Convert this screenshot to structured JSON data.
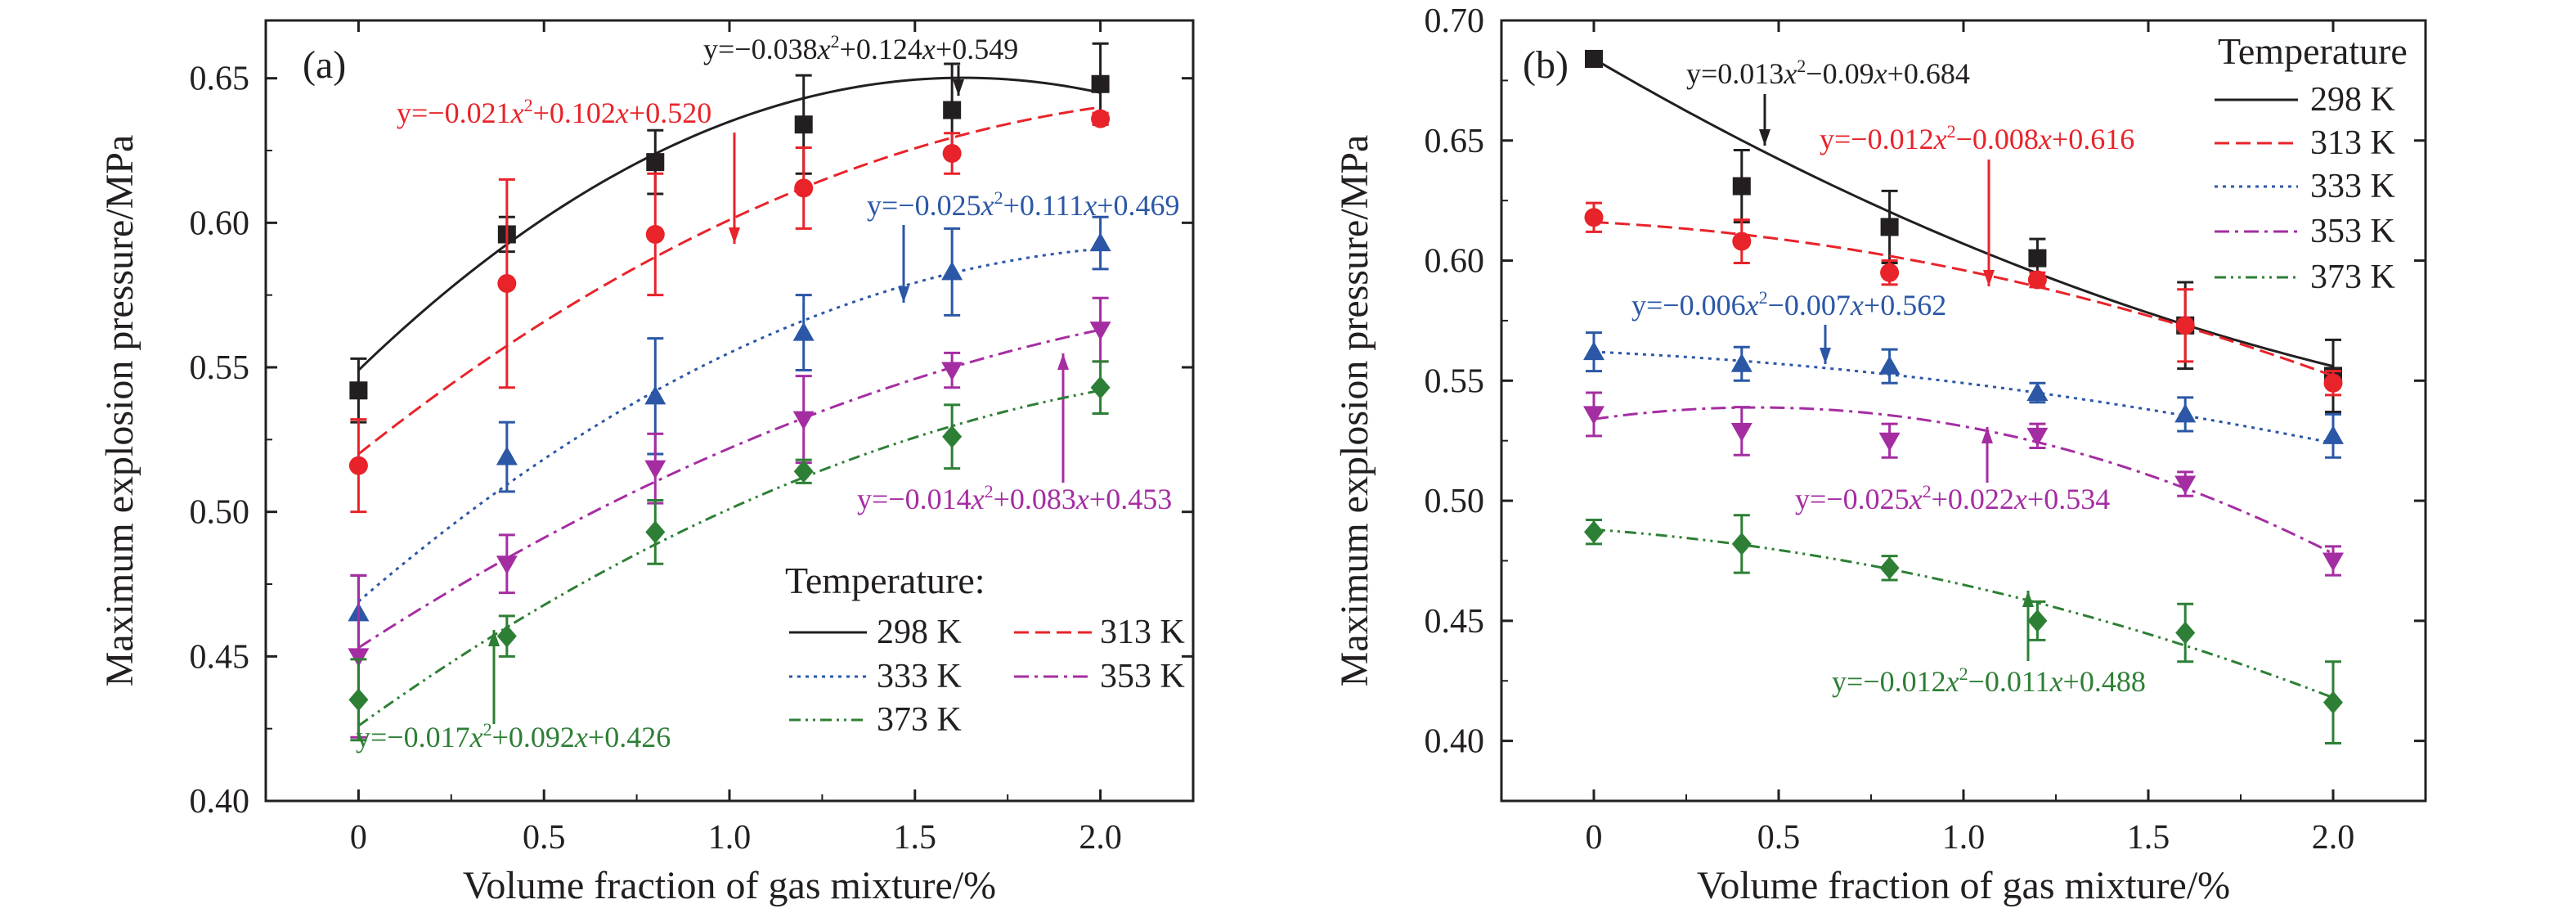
{
  "chart_data": [
    {
      "type": "scatter",
      "panel_label": "(a)",
      "xlabel": "Volume fraction of gas mixture/%",
      "ylabel": "Maximum explosion pressure/MPa",
      "xlim": [
        -0.25,
        2.25
      ],
      "ylim": [
        0.4,
        0.67
      ],
      "xticks": [
        "0",
        "0.5",
        "1.0",
        "1.5",
        "2.0"
      ],
      "yticks": [
        "0.40",
        "0.45",
        "0.50",
        "0.55",
        "0.60",
        "0.65"
      ],
      "grid": false,
      "legend_title": "Temperature:",
      "legend_position": "bottom-right",
      "x": [
        0,
        0.4,
        0.8,
        1.2,
        1.6,
        2.0
      ],
      "series": [
        {
          "name": "298 K",
          "color": "#231f20",
          "marker": "square",
          "line": "solid",
          "values": [
            0.542,
            0.596,
            0.621,
            0.634,
            0.639,
            0.648
          ],
          "errors": [
            0.011,
            0.006,
            0.011,
            0.017,
            0.016,
            0.014
          ],
          "fit": [
            -0.038,
            0.124,
            0.549
          ],
          "equation": {
            "pre": "y=−0.038",
            "mid": "+0.124",
            "post": "+0.549"
          }
        },
        {
          "name": "313 K",
          "color": "#e8232a",
          "marker": "circle",
          "line": "dashed",
          "values": [
            0.516,
            0.579,
            0.596,
            0.612,
            0.624,
            0.636
          ],
          "errors": [
            0.016,
            0.036,
            0.021,
            0.014,
            0.007,
            0.002
          ],
          "fit": [
            -0.021,
            0.102,
            0.52
          ],
          "equation": {
            "pre": "y=−0.021",
            "mid": "+0.102",
            "post": "+0.520"
          }
        },
        {
          "name": "333 K",
          "color": "#2b57a6",
          "marker": "triangle-up",
          "line": "dotted",
          "values": [
            0.465,
            0.519,
            0.54,
            0.562,
            0.583,
            0.593
          ],
          "errors": [
            0.013,
            0.012,
            0.02,
            0.013,
            0.015,
            0.009
          ],
          "fit": [
            -0.025,
            0.111,
            0.469
          ],
          "equation": {
            "pre": "y=−0.025",
            "mid": "+0.111",
            "post": "+0.469"
          }
        },
        {
          "name": "353 K",
          "color": "#a52da2",
          "marker": "triangle-down",
          "line": "dashdot",
          "values": [
            0.45,
            0.482,
            0.515,
            0.532,
            0.549,
            0.563
          ],
          "errors": [
            0.028,
            0.01,
            0.012,
            0.015,
            0.006,
            0.011
          ],
          "fit": [
            -0.014,
            0.083,
            0.453
          ],
          "equation": {
            "pre": "y=−0.014",
            "mid": "+0.083",
            "post": "+0.453"
          }
        },
        {
          "name": "373 K",
          "color": "#2d7f35",
          "marker": "diamond",
          "line": "dashdotdot",
          "values": [
            0.435,
            0.457,
            0.493,
            0.514,
            0.526,
            0.543
          ],
          "errors": [
            0.014,
            0.007,
            0.011,
            0.004,
            0.011,
            0.009
          ],
          "fit": [
            -0.017,
            0.092,
            0.426
          ],
          "equation": {
            "pre": "y=−0.017",
            "mid": "+0.092",
            "post": "+0.426"
          }
        }
      ]
    },
    {
      "type": "scatter",
      "panel_label": "(b)",
      "xlabel": "Volume fraction of gas mixture/%",
      "ylabel": "Maximum explosion pressure/MPa",
      "xlim": [
        -0.25,
        2.25
      ],
      "ylim": [
        0.375,
        0.7
      ],
      "xticks": [
        "0",
        "0.5",
        "1.0",
        "1.5",
        "2.0"
      ],
      "yticks": [
        "0.40",
        "0.45",
        "0.50",
        "0.55",
        "0.60",
        "0.65",
        "0.70"
      ],
      "grid": false,
      "legend_title": "Temperature",
      "legend_position": "top-right",
      "x": [
        0,
        0.4,
        0.8,
        1.2,
        1.6,
        2.0
      ],
      "series": [
        {
          "name": "298 K",
          "color": "#231f20",
          "marker": "square",
          "line": "solid",
          "values": [
            0.684,
            0.631,
            0.614,
            0.601,
            0.573,
            0.552
          ],
          "errors": [
            0.002,
            0.015,
            0.015,
            0.008,
            0.018,
            0.015
          ],
          "fit": [
            0.013,
            -0.09,
            0.684
          ],
          "equation": {
            "pre": "y=0.013",
            "mid": "−0.09",
            "post": "+0.684"
          }
        },
        {
          "name": "313 K",
          "color": "#e8232a",
          "marker": "circle",
          "line": "dashed",
          "values": [
            0.618,
            0.608,
            0.595,
            0.592,
            0.573,
            0.549
          ],
          "errors": [
            0.006,
            0.009,
            0.005,
            0.003,
            0.015,
            0.005
          ],
          "fit": [
            -0.012,
            -0.008,
            0.616
          ],
          "equation": {
            "pre": "y=−0.012",
            "mid": "−0.008",
            "post": "+0.616"
          }
        },
        {
          "name": "333 K",
          "color": "#2b57a6",
          "marker": "triangle-up",
          "line": "dotted",
          "values": [
            0.562,
            0.557,
            0.556,
            0.545,
            0.536,
            0.527
          ],
          "errors": [
            0.008,
            0.007,
            0.007,
            0.004,
            0.007,
            0.009
          ],
          "fit": [
            -0.006,
            -0.007,
            0.562
          ],
          "equation": {
            "pre": "y=−0.006",
            "mid": "−0.007",
            "post": "+0.562"
          }
        },
        {
          "name": "353 K",
          "color": "#a52da2",
          "marker": "triangle-down",
          "line": "dashdot",
          "values": [
            0.536,
            0.529,
            0.525,
            0.527,
            0.507,
            0.475
          ],
          "errors": [
            0.009,
            0.01,
            0.007,
            0.005,
            0.005,
            0.006
          ],
          "fit": [
            -0.025,
            0.022,
            0.534
          ],
          "equation": {
            "pre": "y=−0.025",
            "mid": "+0.022",
            "post": "+0.534"
          }
        },
        {
          "name": "373 K",
          "color": "#2d7f35",
          "marker": "diamond",
          "line": "dashdotdot",
          "values": [
            0.487,
            0.482,
            0.472,
            0.45,
            0.445,
            0.416
          ],
          "errors": [
            0.005,
            0.012,
            0.005,
            0.008,
            0.012,
            0.017
          ],
          "fit": [
            -0.012,
            -0.011,
            0.488
          ],
          "equation": {
            "pre": "y=−0.012",
            "mid": "−0.011",
            "post": "+0.488"
          }
        }
      ]
    }
  ]
}
